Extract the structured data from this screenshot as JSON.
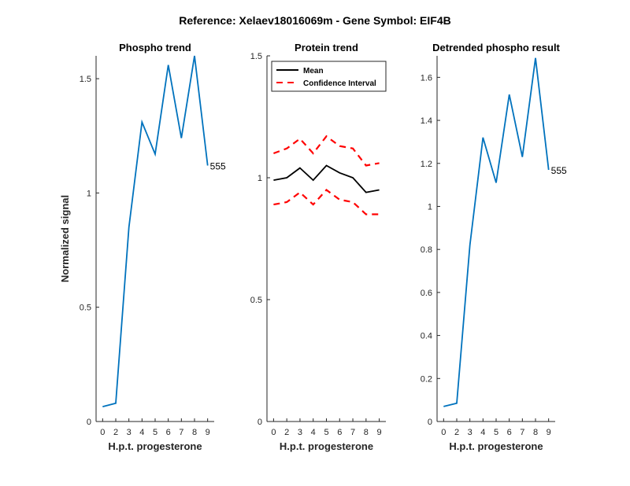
{
  "figure": {
    "title": "Reference:  Xelaev18016069m - Gene Symbol:  EIF4B"
  },
  "chart_data": [
    {
      "type": "line",
      "title": "Phospho trend",
      "xlabel": "H.p.t. progesterone",
      "ylabel": "Normalized signal",
      "x_ticks": [
        "0",
        "2",
        "3",
        "4",
        "5",
        "6",
        "7",
        "8",
        "9"
      ],
      "y_ticks": [
        "0",
        "0.5",
        "1",
        "1.5"
      ],
      "ylim": [
        0,
        1.6
      ],
      "series": [
        {
          "color": "#0072BD",
          "values": [
            0.065,
            0.08,
            0.85,
            1.31,
            1.17,
            1.56,
            1.24,
            1.6,
            1.12
          ]
        }
      ],
      "annotation": "555",
      "grid": false
    },
    {
      "type": "line",
      "title": "Protein trend",
      "xlabel": "H.p.t. progesterone",
      "ylabel": "",
      "x_ticks": [
        "0",
        "2",
        "3",
        "4",
        "5",
        "6",
        "7",
        "8",
        "9"
      ],
      "y_ticks": [
        "0",
        "0.5",
        "1",
        "1.5"
      ],
      "ylim": [
        0,
        1.5
      ],
      "legend": {
        "position": "top-left",
        "items": [
          "Mean",
          "Confidence Interval"
        ]
      },
      "series": [
        {
          "name": "Mean",
          "color": "#000000",
          "style": "solid",
          "values": [
            0.99,
            1.0,
            1.04,
            0.99,
            1.05,
            1.02,
            1.0,
            0.94,
            0.95
          ]
        },
        {
          "name": "Confidence Interval",
          "color": "#FF0000",
          "style": "dashed",
          "values": [
            1.1,
            1.12,
            1.16,
            1.1,
            1.17,
            1.13,
            1.12,
            1.05,
            1.06
          ]
        },
        {
          "name": "Confidence Interval",
          "color": "#FF0000",
          "style": "dashed",
          "values": [
            0.89,
            0.9,
            0.94,
            0.89,
            0.95,
            0.91,
            0.9,
            0.85,
            0.85
          ]
        }
      ],
      "grid": false
    },
    {
      "type": "line",
      "title": "Detrended phospho result",
      "xlabel": "H.p.t. progesterone",
      "ylabel": "",
      "x_ticks": [
        "0",
        "2",
        "3",
        "4",
        "5",
        "6",
        "7",
        "8",
        "9"
      ],
      "y_ticks": [
        "0",
        "0.2",
        "0.4",
        "0.6",
        "0.8",
        "1",
        "1.2",
        "1.4",
        "1.6"
      ],
      "ylim": [
        0,
        1.7
      ],
      "series": [
        {
          "color": "#0072BD",
          "values": [
            0.07,
            0.085,
            0.82,
            1.32,
            1.11,
            1.52,
            1.23,
            1.69,
            1.17
          ]
        }
      ],
      "annotation": "555",
      "grid": false
    }
  ]
}
